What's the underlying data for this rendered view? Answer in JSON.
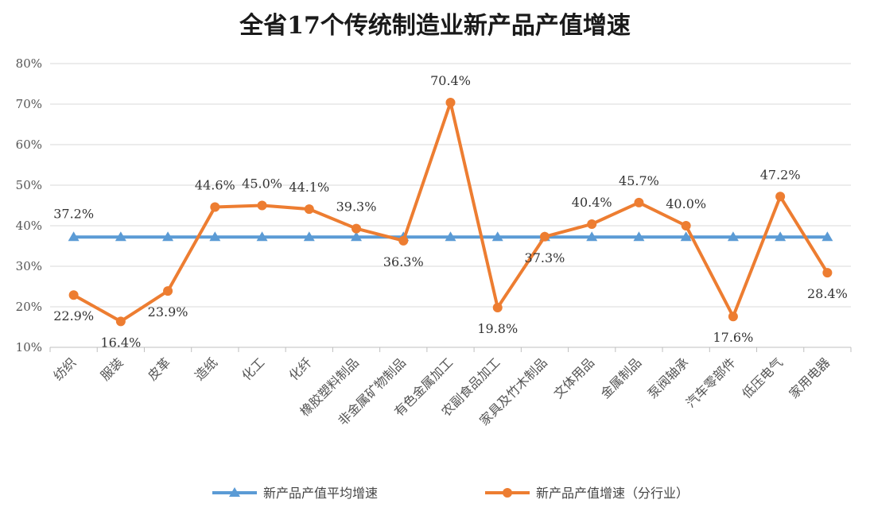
{
  "colors": {
    "average_series": "#5b9bd5",
    "industry_series": "#ed7d31",
    "grid": "#d9d9d9",
    "axis": "#bfbfbf"
  },
  "chart_data": {
    "type": "line",
    "title": "全省17个传统制造业新产品产值增速",
    "xlabel": "",
    "ylabel": "",
    "ylim": [
      0.1,
      0.8
    ],
    "yticks": [
      0.1,
      0.2,
      0.3,
      0.4,
      0.5,
      0.6,
      0.7,
      0.8
    ],
    "ytick_labels": [
      "10%",
      "20%",
      "30%",
      "40%",
      "50%",
      "60%",
      "70%",
      "80%"
    ],
    "grid": true,
    "legend_position": "bottom",
    "categories": [
      "纺织",
      "服装",
      "皮革",
      "造纸",
      "化工",
      "化纤",
      "橡胶塑料制品",
      "非金属矿物制品",
      "有色金属加工",
      "农副食品加工",
      "家具及竹木制品",
      "文体用品",
      "金属制品",
      "泵阀轴承",
      "汽车零部件",
      "低压电气",
      "家用电器"
    ],
    "series": [
      {
        "name": "新产品产值平均增速",
        "color": "#5b9bd5",
        "marker": "triangle",
        "values": [
          0.372,
          0.372,
          0.372,
          0.372,
          0.372,
          0.372,
          0.372,
          0.372,
          0.372,
          0.372,
          0.372,
          0.372,
          0.372,
          0.372,
          0.372,
          0.372,
          0.372
        ],
        "data_labels": [
          "37.2%",
          "",
          "",
          "",
          "",
          "",
          "",
          "",
          "",
          "",
          "",
          "",
          "",
          "",
          "",
          "",
          ""
        ]
      },
      {
        "name": "新产品产值增速（分行业）",
        "color": "#ed7d31",
        "marker": "circle",
        "values": [
          0.229,
          0.164,
          0.239,
          0.446,
          0.45,
          0.441,
          0.393,
          0.363,
          0.704,
          0.198,
          0.373,
          0.404,
          0.457,
          0.4,
          0.176,
          0.472,
          0.284
        ],
        "data_labels": [
          "22.9%",
          "16.4%",
          "23.9%",
          "44.6%",
          "45.0%",
          "44.1%",
          "39.3%",
          "36.3%",
          "70.4%",
          "19.8%",
          "37.3%",
          "40.4%",
          "45.7%",
          "40.0%",
          "17.6%",
          "47.2%",
          "28.4%"
        ]
      }
    ]
  }
}
